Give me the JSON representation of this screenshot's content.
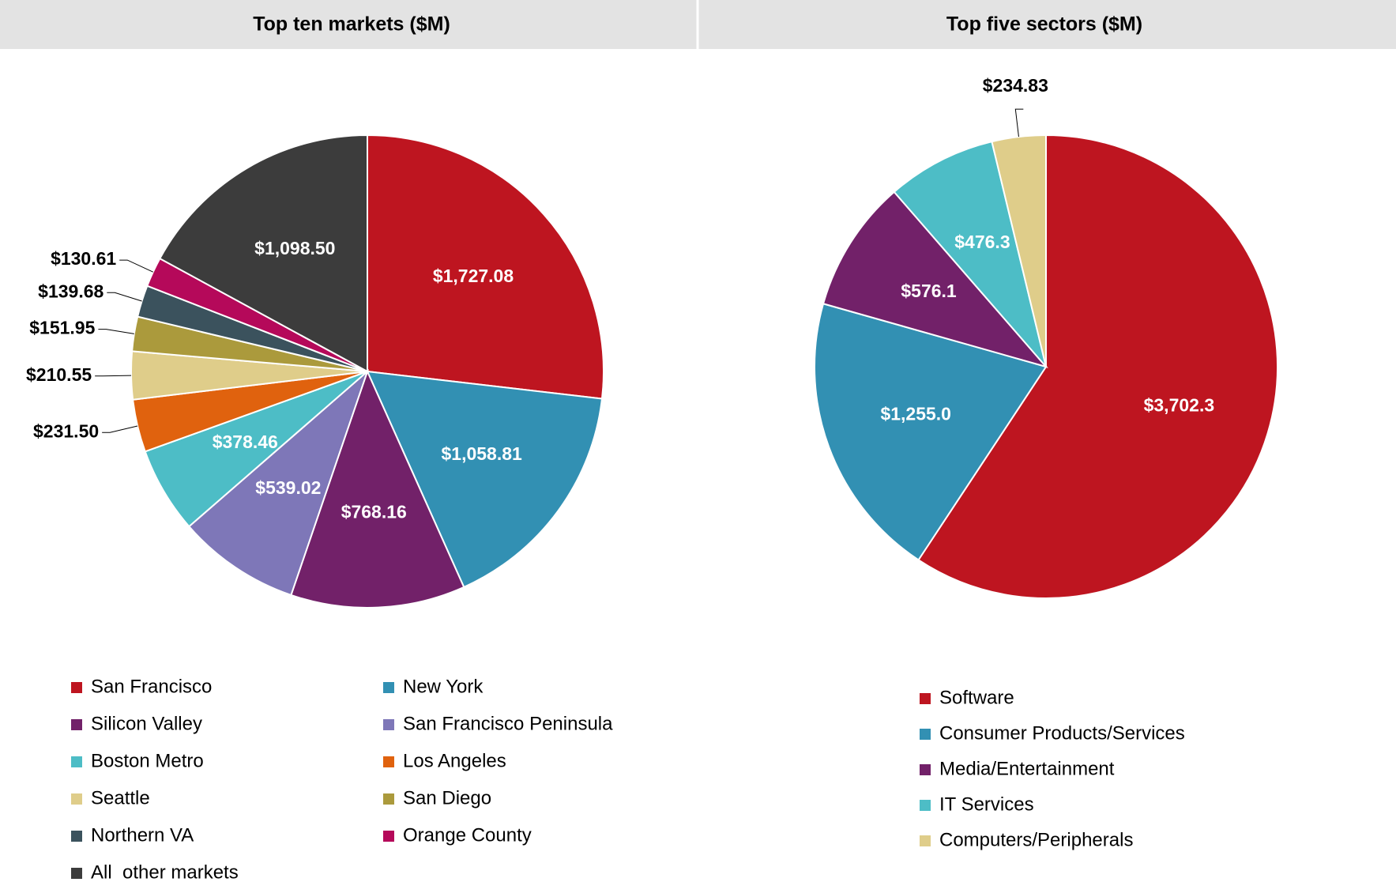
{
  "chart_data": [
    {
      "type": "pie",
      "title": "Top ten markets ($M)",
      "categories": [
        "San Francisco",
        "New York",
        "Silicon Valley",
        "San Francisco Peninsula",
        "Boston Metro",
        "Los Angeles",
        "Seattle",
        "San Diego",
        "Northern VA",
        "Orange County",
        "All  other markets"
      ],
      "values": [
        1727.08,
        1058.81,
        768.16,
        539.02,
        378.46,
        231.5,
        210.55,
        151.95,
        139.68,
        130.61,
        1098.5
      ],
      "value_labels": [
        "$1,727.08",
        "$1,058.81",
        "$768.16",
        "$539.02",
        "$378.46",
        "$231.50",
        "$210.55",
        "$151.95",
        "$139.68",
        "$130.61",
        "$1,098.50"
      ],
      "colors": [
        "#be1520",
        "#3290b3",
        "#722169",
        "#7e77b8",
        "#4dbdc6",
        "#e0620e",
        "#dfcd8a",
        "#ab9a3c",
        "#3b525d",
        "#b5095a",
        "#3c3c3c"
      ]
    },
    {
      "type": "pie",
      "title": "Top five sectors ($M)",
      "categories": [
        "Software",
        "Consumer Products/Services",
        "Media/Entertainment",
        "IT Services",
        "Computers/Peripherals"
      ],
      "values": [
        3702.3,
        1255.0,
        576.1,
        476.3,
        234.83
      ],
      "value_labels": [
        "$3,702.3",
        "$1,255.0",
        "$576.1",
        "$476.3",
        "$234.83"
      ],
      "colors": [
        "#be1520",
        "#3290b3",
        "#722169",
        "#4dbdc6",
        "#dfcd8a"
      ]
    }
  ]
}
